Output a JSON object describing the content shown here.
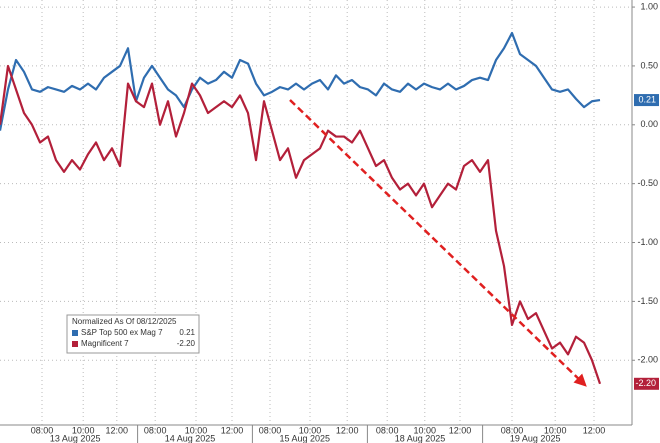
{
  "chart_data": {
    "type": "line",
    "legend_title": "Normalized As Of 08/12/2025",
    "xlim": [
      0,
      79
    ],
    "ylim": [
      -2.55,
      1.06
    ],
    "grid": true,
    "legend": "lower left",
    "xticks": [
      {
        "value": 5.25,
        "label": "08:00"
      },
      {
        "value": 10.4,
        "label": "10:00"
      },
      {
        "value": 14.6,
        "label": "12:00"
      },
      {
        "value": 19.4,
        "label": "08:00"
      },
      {
        "value": 24.5,
        "label": "10:00"
      },
      {
        "value": 29,
        "label": "12:00"
      },
      {
        "value": 33.75,
        "label": "08:00"
      },
      {
        "value": 38.75,
        "label": "10:00"
      },
      {
        "value": 43.4,
        "label": "12:00"
      },
      {
        "value": 48.4,
        "label": "08:00"
      },
      {
        "value": 53.1,
        "label": "10:00"
      },
      {
        "value": 57.5,
        "label": "12:00"
      },
      {
        "value": 64,
        "label": "08:00"
      },
      {
        "value": 69.4,
        "label": "10:00"
      },
      {
        "value": 74.25,
        "label": "12:00"
      }
    ],
    "days": [
      {
        "value": 9.4,
        "label": "13 Aug 2025"
      },
      {
        "value": 23.75,
        "label": "14 Aug 2025"
      },
      {
        "value": 38.1,
        "label": "15 Aug 2025"
      },
      {
        "value": 52.5,
        "label": "18 Aug 2025"
      },
      {
        "value": 66.9,
        "label": "19 Aug 2025"
      }
    ],
    "yticks": [
      {
        "value": 1,
        "label": "1.00"
      },
      {
        "value": 0.5,
        "label": "0.50"
      },
      {
        "value": 0,
        "label": "0.00"
      },
      {
        "value": -0.5,
        "label": "-0.50"
      },
      {
        "value": -1,
        "label": "-1.00"
      },
      {
        "value": -1.5,
        "label": "-1.50"
      },
      {
        "value": -2,
        "label": "-2.00"
      }
    ],
    "series": [
      {
        "name": "S&P Top 500 ex Mag 7",
        "color": "#2f6db0",
        "end_label": {
          "value": 0.21,
          "label": "0.21"
        },
        "values": [
          -0.05,
          0.3,
          0.55,
          0.45,
          0.3,
          0.28,
          0.32,
          0.3,
          0.28,
          0.33,
          0.3,
          0.35,
          0.3,
          0.4,
          0.45,
          0.5,
          0.65,
          0.2,
          0.4,
          0.5,
          0.4,
          0.3,
          0.25,
          0.15,
          0.3,
          0.4,
          0.35,
          0.38,
          0.45,
          0.4,
          0.55,
          0.52,
          0.35,
          0.25,
          0.28,
          0.32,
          0.3,
          0.35,
          0.3,
          0.35,
          0.38,
          0.3,
          0.42,
          0.35,
          0.38,
          0.32,
          0.3,
          0.25,
          0.35,
          0.3,
          0.28,
          0.35,
          0.3,
          0.35,
          0.32,
          0.3,
          0.35,
          0.3,
          0.33,
          0.38,
          0.4,
          0.38,
          0.55,
          0.65,
          0.78,
          0.6,
          0.55,
          0.5,
          0.4,
          0.3,
          0.28,
          0.3,
          0.22,
          0.15,
          0.2,
          0.21
        ]
      },
      {
        "name": "Magnificent 7",
        "color": "#b3203a",
        "end_label": {
          "value": -2.2,
          "label": "-2.20"
        },
        "values": [
          0,
          0.5,
          0.3,
          0.1,
          0,
          -0.15,
          -0.1,
          -0.3,
          -0.4,
          -0.3,
          -0.38,
          -0.25,
          -0.15,
          -0.3,
          -0.2,
          -0.35,
          0.35,
          0.2,
          0.15,
          0.35,
          0,
          0.2,
          -0.1,
          0.1,
          0.35,
          0.25,
          0.1,
          0.15,
          0.2,
          0.15,
          0.25,
          0.1,
          -0.3,
          0.2,
          -0.05,
          -0.3,
          -0.2,
          -0.45,
          -0.3,
          -0.25,
          -0.2,
          -0.05,
          -0.1,
          -0.1,
          -0.15,
          -0.05,
          -0.2,
          -0.35,
          -0.3,
          -0.45,
          -0.55,
          -0.5,
          -0.6,
          -0.5,
          -0.7,
          -0.6,
          -0.5,
          -0.55,
          -0.35,
          -0.3,
          -0.4,
          -0.3,
          -0.9,
          -1.2,
          -1.7,
          -1.5,
          -1.65,
          -1.6,
          -1.75,
          -1.9,
          -1.85,
          -1.95,
          -1.8,
          -1.85,
          -2,
          -2.2
        ]
      }
    ]
  }
}
